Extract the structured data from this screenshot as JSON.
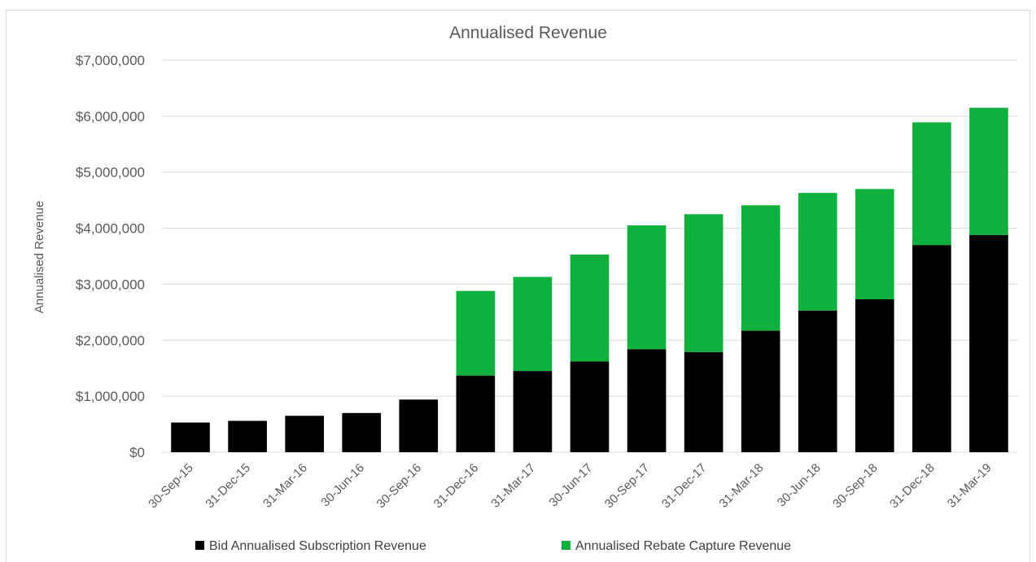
{
  "chart_data": {
    "type": "bar",
    "stacked": true,
    "title": "Annualised Revenue",
    "ylabel": "Annualised Revenue",
    "xlabel": "",
    "ylim": [
      0,
      7000000
    ],
    "yticks": [
      0,
      1000000,
      2000000,
      3000000,
      4000000,
      5000000,
      6000000,
      7000000
    ],
    "ytick_labels": [
      "$0",
      "$1,000,000",
      "$2,000,000",
      "$3,000,000",
      "$4,000,000",
      "$5,000,000",
      "$6,000,000",
      "$7,000,000"
    ],
    "grid": true,
    "legend_position": "bottom",
    "categories": [
      "30-Sep-15",
      "31-Dec-15",
      "31-Mar-16",
      "30-Jun-16",
      "30-Sep-16",
      "31-Dec-16",
      "31-Mar-17",
      "30-Jun-17",
      "30-Sep-17",
      "31-Dec-17",
      "31-Mar-18",
      "30-Jun-18",
      "30-Sep-18",
      "31-Dec-18",
      "31-Mar-19"
    ],
    "series": [
      {
        "name": "Bid Annualised Subscription Revenue",
        "color": "#000000",
        "values": [
          530000,
          560000,
          650000,
          700000,
          940000,
          1370000,
          1450000,
          1620000,
          1840000,
          1790000,
          2170000,
          2530000,
          2730000,
          3700000,
          3880000
        ]
      },
      {
        "name": "Annualised Rebate Capture Revenue",
        "color": "#0fb13d",
        "values": [
          0,
          0,
          0,
          0,
          0,
          1510000,
          1680000,
          1910000,
          2210000,
          2460000,
          2240000,
          2100000,
          1970000,
          2190000,
          2270000
        ]
      }
    ]
  }
}
